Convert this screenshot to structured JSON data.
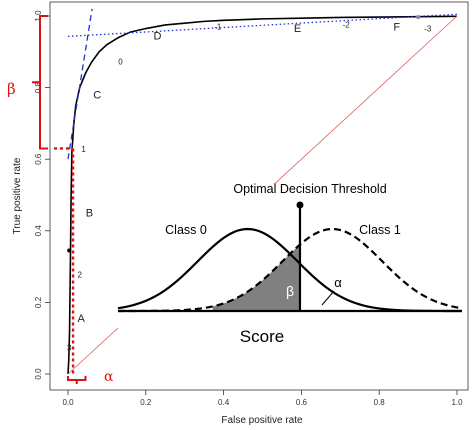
{
  "chart_data": {
    "type": "line",
    "title": "",
    "xlabel": "False positive rate",
    "ylabel": "True positive rate",
    "xlim": [
      0,
      1
    ],
    "ylim": [
      0,
      1
    ],
    "xticks": [
      "0.0",
      "0.2",
      "0.4",
      "0.6",
      "0.8",
      "1.0"
    ],
    "yticks": [
      "0.0",
      "0.2",
      "0.4",
      "0.6",
      "0.8",
      "1.0"
    ],
    "grid": false,
    "series": [
      {
        "kind": "roc",
        "color": "#000000",
        "x": [
          0.0,
          0.002,
          0.004,
          0.006,
          0.008,
          0.01,
          0.015,
          0.02,
          0.03,
          0.045,
          0.06,
          0.08,
          0.1,
          0.13,
          0.16,
          0.2,
          0.25,
          0.3,
          0.35,
          0.4,
          0.5,
          0.6,
          0.7,
          0.8,
          0.9,
          1.0
        ],
        "y": [
          0.0,
          0.04,
          0.12,
          0.3,
          0.5,
          0.62,
          0.7,
          0.75,
          0.8,
          0.84,
          0.87,
          0.9,
          0.92,
          0.94,
          0.955,
          0.965,
          0.975,
          0.98,
          0.985,
          0.988,
          0.992,
          0.994,
          0.996,
          0.997,
          0.998,
          0.999
        ]
      },
      {
        "kind": "chance",
        "color": "#e06060",
        "x": [
          0,
          1
        ],
        "y": [
          0,
          1
        ]
      },
      {
        "kind": "tangent-steep",
        "color": "#2233cc",
        "x": [
          0,
          0.062
        ],
        "y": [
          0.6,
          1.02
        ]
      },
      {
        "kind": "tangent-shallow",
        "color": "#2233cc",
        "x": [
          0.0,
          1.0
        ],
        "y": [
          0.943,
          1.005
        ]
      }
    ],
    "threshold_labels": [
      {
        "text": "3",
        "x": 0.003,
        "y": 0.065
      },
      {
        "text": "2",
        "x": 0.03,
        "y": 0.27
      },
      {
        "text": "1",
        "x": 0.04,
        "y": 0.62
      },
      {
        "text": "0",
        "x": 0.135,
        "y": 0.865
      },
      {
        "text": "-1",
        "x": 0.385,
        "y": 0.962
      },
      {
        "text": "-2",
        "x": 0.715,
        "y": 0.968
      },
      {
        "text": "-3",
        "x": 0.925,
        "y": 0.957
      }
    ],
    "letter_labels": [
      {
        "text": "A",
        "x": 0.034,
        "y": 0.145
      },
      {
        "text": "B",
        "x": 0.055,
        "y": 0.44
      },
      {
        "text": "C",
        "x": 0.075,
        "y": 0.77
      },
      {
        "text": "D",
        "x": 0.23,
        "y": 0.935
      },
      {
        "text": "E",
        "x": 0.59,
        "y": 0.955
      },
      {
        "text": "F",
        "x": 0.845,
        "y": 0.96
      }
    ],
    "points": [
      {
        "x": 0.003,
        "y": 0.345,
        "color": "#000000"
      },
      {
        "x": 0.9,
        "y": 0.997,
        "color": "#888888"
      }
    ],
    "annotations": {
      "beta_symbol": "β",
      "alpha_symbol": "α",
      "beta_bracket_y": [
        0.63,
        1.0
      ],
      "alpha_bracket_x": [
        0.0,
        0.045
      ],
      "red_color": "#dd1111"
    },
    "inset": {
      "title": "Optimal Decision Threshold",
      "class0_label": "Class 0",
      "class1_label": "Class 1",
      "beta_label": "β",
      "alpha_label": "α",
      "axis_label": "Score",
      "class0": {
        "mean": 0.0,
        "sd": 1.0
      },
      "class1": {
        "mean": 1.7,
        "sd": 1.0
      },
      "threshold": 1.05,
      "shade_color": "#808080"
    }
  }
}
